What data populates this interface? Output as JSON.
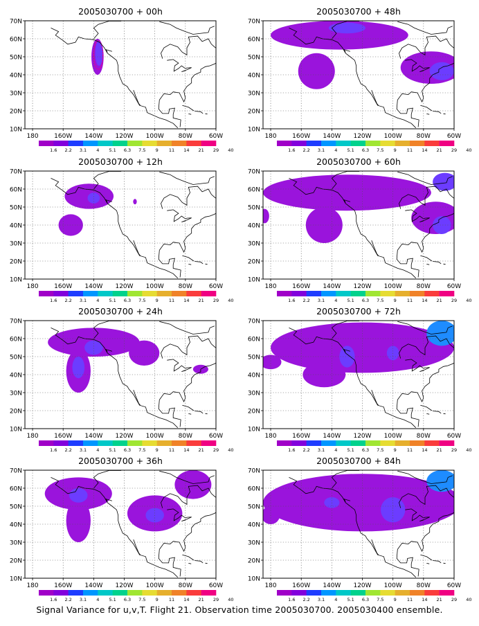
{
  "figure": {
    "caption": "Signal Variance for u,v,T. Flight 21. Observation time 2005030700. 2005030400 ensemble."
  },
  "colorbar": {
    "labels": [
      "1.6",
      "2.2",
      "3.1",
      "4",
      "5.1",
      "6.3",
      "7.5",
      "9",
      "11",
      "14",
      "21",
      "29",
      "40"
    ],
    "colors": [
      "#a000c8",
      "#8200dc",
      "#1e3cff",
      "#0096ff",
      "#00c8c8",
      "#00d28c",
      "#a0e632",
      "#e6dc32",
      "#e6af2d",
      "#f08228",
      "#fa3c3c",
      "#f00082"
    ]
  },
  "chart_data": [
    {
      "type": "heatmap",
      "title": "2005030700 + 00h",
      "x_ticks": [
        "180",
        "160W",
        "140W",
        "120W",
        "100W",
        "80W",
        "60W"
      ],
      "y_ticks": [
        "10N",
        "20N",
        "30N",
        "40N",
        "50N",
        "60N",
        "70N"
      ],
      "xlim_deg_east": [
        -185,
        -60
      ],
      "ylim_deg_north": [
        10,
        70
      ],
      "grid": true,
      "blobs": [
        {
          "lon": -137.5,
          "lat": 50,
          "rx": 4,
          "ry": 10,
          "level": 0
        },
        {
          "lon": -136.5,
          "lat": 52,
          "rx": 2.5,
          "ry": 7,
          "level": 1
        }
      ],
      "contours": [
        {
          "lon": -137,
          "lat": 51,
          "rx": 3,
          "ry": 8,
          "color": "#f00082"
        }
      ]
    },
    {
      "type": "heatmap",
      "title": "2005030700 + 12h",
      "x_ticks": [
        "180",
        "160W",
        "140W",
        "120W",
        "100W",
        "80W",
        "60W"
      ],
      "y_ticks": [
        "10N",
        "20N",
        "30N",
        "40N",
        "50N",
        "60N",
        "70N"
      ],
      "xlim_deg_east": [
        -185,
        -60
      ],
      "ylim_deg_north": [
        10,
        70
      ],
      "grid": true,
      "blobs": [
        {
          "lon": -143,
          "lat": 56,
          "rx": 16,
          "ry": 7,
          "level": 0
        },
        {
          "lon": -155,
          "lat": 40,
          "rx": 8,
          "ry": 6,
          "level": 0
        },
        {
          "lon": -140,
          "lat": 55,
          "rx": 4,
          "ry": 3,
          "level": 1
        },
        {
          "lon": -113,
          "lat": 53,
          "rx": 1.2,
          "ry": 1.5,
          "level": 0
        }
      ],
      "contours": []
    },
    {
      "type": "heatmap",
      "title": "2005030700 + 24h",
      "x_ticks": [
        "180",
        "160W",
        "140W",
        "120W",
        "100W",
        "80W",
        "60W"
      ],
      "y_ticks": [
        "10N",
        "20N",
        "30N",
        "40N",
        "50N",
        "60N",
        "70N"
      ],
      "xlim_deg_east": [
        -185,
        -60
      ],
      "ylim_deg_north": [
        10,
        70
      ],
      "grid": true,
      "blobs": [
        {
          "lon": -140,
          "lat": 58,
          "rx": 30,
          "ry": 8,
          "level": 0
        },
        {
          "lon": -150,
          "lat": 42,
          "rx": 8,
          "ry": 12,
          "level": 0
        },
        {
          "lon": -107,
          "lat": 52,
          "rx": 10,
          "ry": 7,
          "level": 0
        },
        {
          "lon": -150,
          "lat": 44,
          "rx": 4,
          "ry": 6,
          "level": 1
        },
        {
          "lon": -140,
          "lat": 55,
          "rx": 6,
          "ry": 4,
          "level": 1
        },
        {
          "lon": -70,
          "lat": 43,
          "rx": 5,
          "ry": 2.5,
          "level": 0
        }
      ],
      "contours": []
    },
    {
      "type": "heatmap",
      "title": "2005030700 + 36h",
      "x_ticks": [
        "180",
        "160W",
        "140W",
        "120W",
        "100W",
        "80W",
        "60W"
      ],
      "y_ticks": [
        "10N",
        "20N",
        "30N",
        "40N",
        "50N",
        "60N",
        "70N"
      ],
      "xlim_deg_east": [
        -185,
        -60
      ],
      "ylim_deg_north": [
        10,
        70
      ],
      "grid": true,
      "blobs": [
        {
          "lon": -150,
          "lat": 57,
          "rx": 22,
          "ry": 9,
          "level": 0
        },
        {
          "lon": -150,
          "lat": 42,
          "rx": 8,
          "ry": 12,
          "level": 0
        },
        {
          "lon": -100,
          "lat": 46,
          "rx": 18,
          "ry": 10,
          "level": 0
        },
        {
          "lon": -75,
          "lat": 62,
          "rx": 12,
          "ry": 8,
          "level": 0
        },
        {
          "lon": -100,
          "lat": 45,
          "rx": 6,
          "ry": 4,
          "level": 1
        },
        {
          "lon": -150,
          "lat": 56,
          "rx": 6,
          "ry": 4,
          "level": 1
        }
      ],
      "contours": []
    },
    {
      "type": "heatmap",
      "title": "2005030700 + 48h",
      "x_ticks": [
        "180",
        "160W",
        "140W",
        "120W",
        "100W",
        "80W",
        "60W"
      ],
      "y_ticks": [
        "10N",
        "20N",
        "30N",
        "40N",
        "50N",
        "60N",
        "70N"
      ],
      "xlim_deg_east": [
        -185,
        -60
      ],
      "ylim_deg_north": [
        10,
        70
      ],
      "grid": true,
      "blobs": [
        {
          "lon": -135,
          "lat": 62,
          "rx": 45,
          "ry": 8,
          "level": 0
        },
        {
          "lon": -150,
          "lat": 42,
          "rx": 12,
          "ry": 10,
          "level": 0
        },
        {
          "lon": -75,
          "lat": 44,
          "rx": 20,
          "ry": 9,
          "level": 0
        },
        {
          "lon": -68,
          "lat": 42,
          "rx": 8,
          "ry": 5,
          "level": 1
        },
        {
          "lon": -130,
          "lat": 66,
          "rx": 12,
          "ry": 3,
          "level": 1
        }
      ],
      "contours": []
    },
    {
      "type": "heatmap",
      "title": "2005030700 + 60h",
      "x_ticks": [
        "180",
        "160W",
        "140W",
        "120W",
        "100W",
        "80W",
        "60W"
      ],
      "y_ticks": [
        "10N",
        "20N",
        "30N",
        "40N",
        "50N",
        "60N",
        "70N"
      ],
      "xlim_deg_east": [
        -185,
        -60
      ],
      "ylim_deg_north": [
        10,
        70
      ],
      "grid": true,
      "blobs": [
        {
          "lon": -130,
          "lat": 58,
          "rx": 55,
          "ry": 10,
          "level": 0
        },
        {
          "lon": -145,
          "lat": 40,
          "rx": 12,
          "ry": 10,
          "level": 0
        },
        {
          "lon": -72,
          "lat": 44,
          "rx": 16,
          "ry": 9,
          "level": 0
        },
        {
          "lon": -68,
          "lat": 40,
          "rx": 6,
          "ry": 5,
          "level": 1
        },
        {
          "lon": -66,
          "lat": 64,
          "rx": 8,
          "ry": 5,
          "level": 1
        },
        {
          "lon": -184,
          "lat": 45,
          "rx": 3,
          "ry": 4,
          "level": 0
        }
      ],
      "contours": []
    },
    {
      "type": "heatmap",
      "title": "2005030700 + 72h",
      "x_ticks": [
        "180",
        "160W",
        "140W",
        "120W",
        "100W",
        "80W",
        "60W"
      ],
      "y_ticks": [
        "10N",
        "20N",
        "30N",
        "40N",
        "50N",
        "60N",
        "70N"
      ],
      "xlim_deg_east": [
        -185,
        -60
      ],
      "ylim_deg_north": [
        10,
        70
      ],
      "grid": true,
      "blobs": [
        {
          "lon": -120,
          "lat": 55,
          "rx": 60,
          "ry": 14,
          "level": 0
        },
        {
          "lon": -145,
          "lat": 40,
          "rx": 14,
          "ry": 7,
          "level": 0
        },
        {
          "lon": -180,
          "lat": 47,
          "rx": 7,
          "ry": 4,
          "level": 0
        },
        {
          "lon": -130,
          "lat": 50,
          "rx": 5,
          "ry": 6,
          "level": 1
        },
        {
          "lon": -100,
          "lat": 52,
          "rx": 4,
          "ry": 4,
          "level": 1
        },
        {
          "lon": -68,
          "lat": 63,
          "rx": 10,
          "ry": 7,
          "level": 2
        }
      ],
      "contours": []
    },
    {
      "type": "heatmap",
      "title": "2005030700 + 84h",
      "x_ticks": [
        "180",
        "160W",
        "140W",
        "120W",
        "100W",
        "80W",
        "60W"
      ],
      "y_ticks": [
        "10N",
        "20N",
        "30N",
        "40N",
        "50N",
        "60N",
        "70N"
      ],
      "xlim_deg_east": [
        -185,
        -60
      ],
      "ylim_deg_north": [
        10,
        70
      ],
      "grid": true,
      "blobs": [
        {
          "lon": -120,
          "lat": 52,
          "rx": 65,
          "ry": 16,
          "level": 0
        },
        {
          "lon": -180,
          "lat": 45,
          "rx": 6,
          "ry": 5,
          "level": 0
        },
        {
          "lon": -100,
          "lat": 48,
          "rx": 8,
          "ry": 7,
          "level": 1
        },
        {
          "lon": -140,
          "lat": 52,
          "rx": 5,
          "ry": 3,
          "level": 1
        },
        {
          "lon": -68,
          "lat": 64,
          "rx": 10,
          "ry": 6,
          "level": 2
        }
      ],
      "contours": []
    }
  ]
}
